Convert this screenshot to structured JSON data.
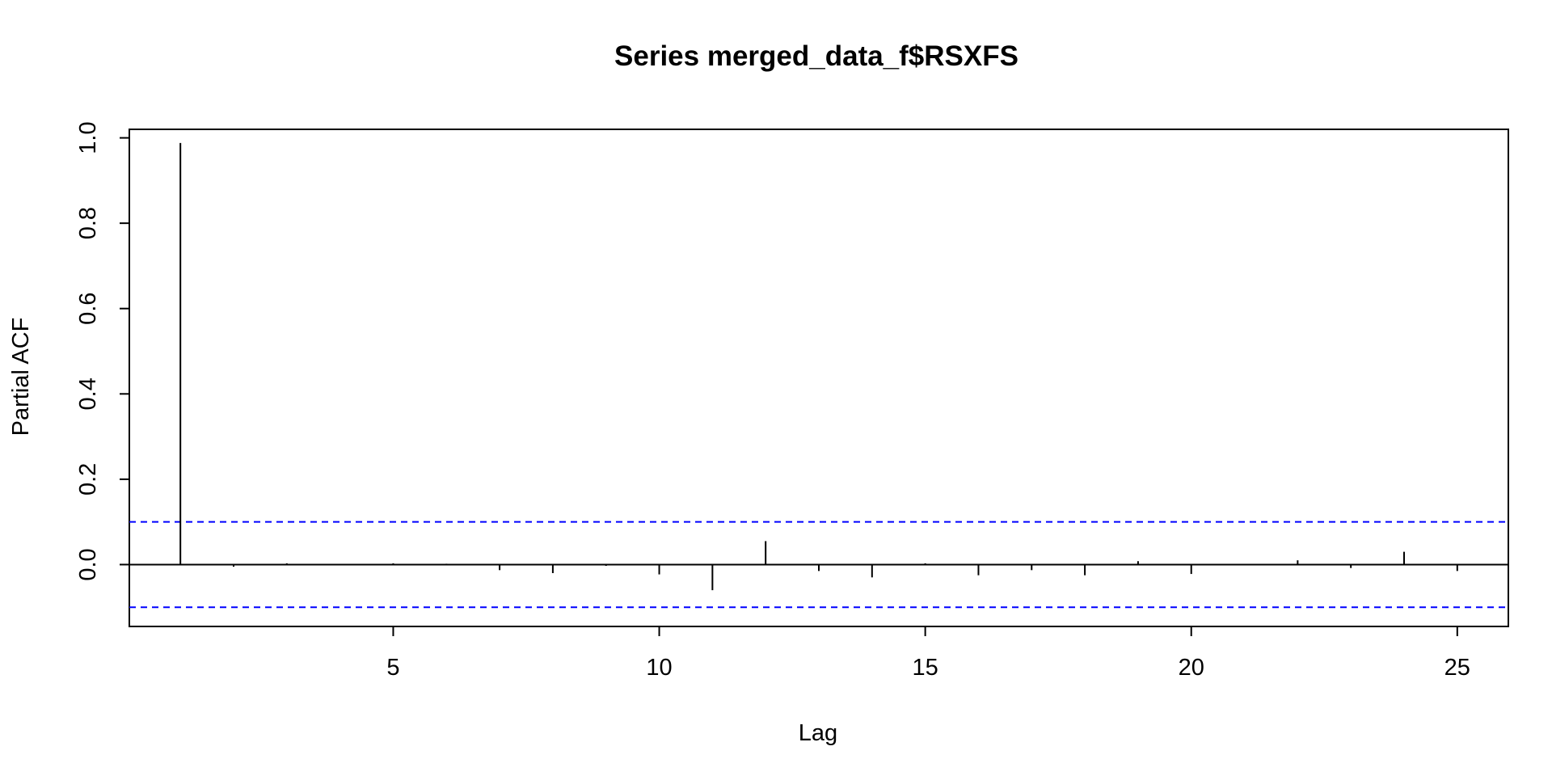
{
  "chart_data": {
    "type": "bar",
    "subtype": "partial-acf",
    "title": "Series  merged_data_f$RSXFS",
    "xlabel": "Lag",
    "ylabel": "Partial ACF",
    "x": [
      1,
      2,
      3,
      4,
      5,
      6,
      7,
      8,
      9,
      10,
      11,
      12,
      13,
      14,
      15,
      16,
      17,
      18,
      19,
      20,
      21,
      22,
      23,
      24,
      25
    ],
    "values": [
      0.988,
      -0.005,
      0.003,
      -0.002,
      0.003,
      0.002,
      -0.013,
      -0.02,
      -0.003,
      -0.023,
      -0.06,
      0.055,
      -0.015,
      -0.03,
      0.003,
      -0.025,
      -0.013,
      -0.025,
      0.008,
      -0.022,
      -0.002,
      0.01,
      -0.008,
      0.03,
      -0.015
    ],
    "xlim": [
      0.04,
      25.96
    ],
    "ylim": [
      -0.145,
      1.02
    ],
    "x_ticks": [
      5,
      10,
      15,
      20,
      25
    ],
    "y_ticks": [
      0.0,
      0.2,
      0.4,
      0.6,
      0.8,
      1.0
    ],
    "x_tick_labels": [
      "5",
      "10",
      "15",
      "20",
      "25"
    ],
    "y_tick_labels": [
      "0.0",
      "0.2",
      "0.4",
      "0.6",
      "0.8",
      "1.0"
    ],
    "confidence_bound": 0.1,
    "colors": {
      "bars": "#000000",
      "confidence_lines": "#0000ff",
      "axes": "#000000"
    },
    "grid": false,
    "legend": "none"
  }
}
